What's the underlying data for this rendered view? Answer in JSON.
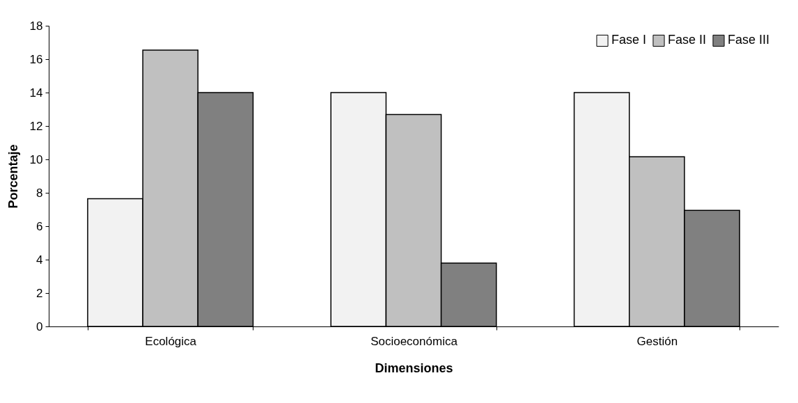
{
  "chart_data": {
    "type": "bar",
    "xlabel": "Dimensiones",
    "ylabel": "Porcentaje",
    "categories": [
      "Ecológica",
      "Socioeconómica",
      "Gestión"
    ],
    "series": [
      {
        "name": "Fase I",
        "color": "#f2f2f2",
        "values": [
          7.65,
          14.0,
          14.0
        ]
      },
      {
        "name": "Fase II",
        "color": "#c0c0c0",
        "values": [
          16.54,
          12.69,
          10.16
        ]
      },
      {
        "name": "Fase III",
        "color": "#808080",
        "values": [
          14.0,
          3.79,
          6.95
        ]
      }
    ],
    "ylim": [
      0,
      18
    ],
    "yticks": [
      0,
      2,
      4,
      6,
      8,
      10,
      12,
      14,
      16,
      18
    ],
    "grid": false,
    "legend": "top right"
  }
}
